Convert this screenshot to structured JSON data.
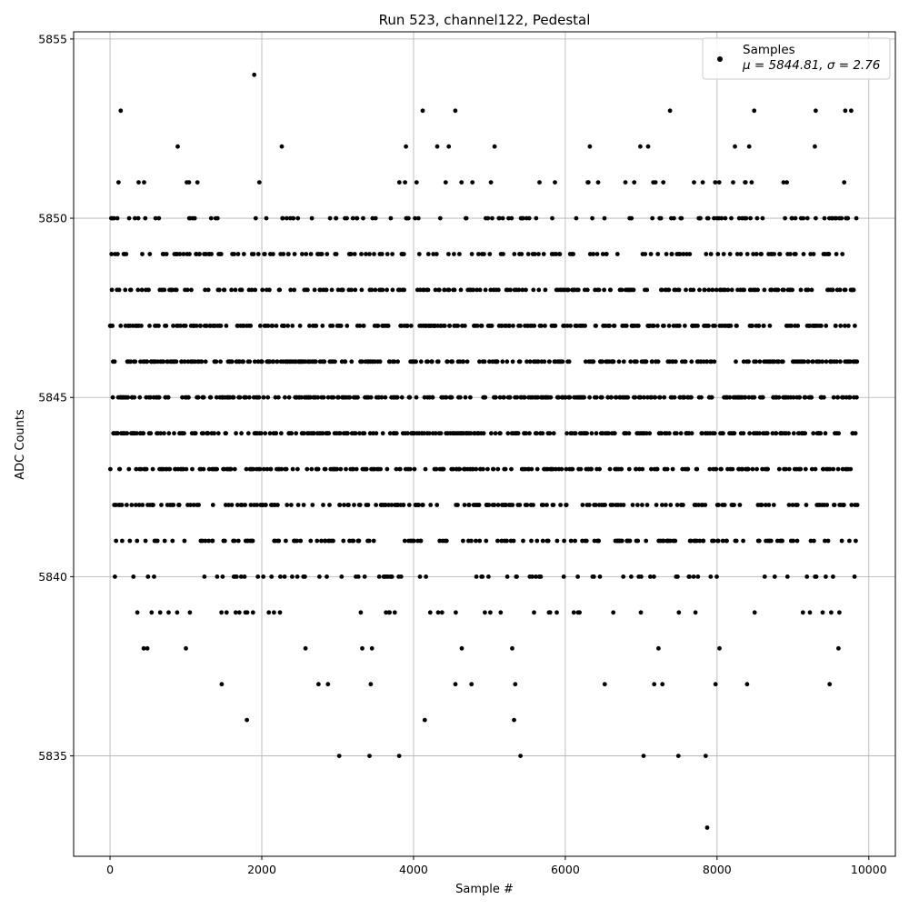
{
  "chart_data": {
    "type": "scatter",
    "title": "Run 523, channel122, Pedestal",
    "xlabel": "Sample #",
    "ylabel": "ADC Counts",
    "xlim": [
      -480,
      10350
    ],
    "ylim": [
      5832.2,
      5855.2
    ],
    "x_ticks": [
      0,
      2000,
      4000,
      6000,
      8000,
      10000
    ],
    "x_tick_labels": [
      "0",
      "2000",
      "4000",
      "6000",
      "8000",
      "10000"
    ],
    "y_ticks": [
      5835,
      5840,
      5845,
      5850,
      5855
    ],
    "y_tick_labels": [
      "5835",
      "5840",
      "5845",
      "5850",
      "5855"
    ],
    "grid": true,
    "legend": {
      "position": "top-right",
      "series_name": "Samples",
      "stats_label": "μ = 5844.81, σ = 2.76"
    },
    "marker_color": "#000000",
    "sample_count": 9850,
    "level_profile": {
      "note_levels": [
        5833,
        5835,
        5836,
        5837,
        5838,
        5839,
        5840,
        5841,
        5842,
        5843,
        5844,
        5845,
        5846,
        5847,
        5848,
        5849,
        5850,
        5851,
        5852,
        5853,
        5854
      ],
      "relative_density": [
        0.0001,
        0.0005,
        0.0012,
        0.003,
        0.006,
        0.016,
        0.035,
        0.06,
        0.09,
        0.11,
        0.125,
        0.13,
        0.125,
        0.11,
        0.09,
        0.06,
        0.035,
        0.016,
        0.006,
        0.0015,
        0.0002
      ]
    },
    "isolated_points": [
      {
        "x": 1900,
        "y": 5854
      },
      {
        "x": 140,
        "y": 5853
      },
      {
        "x": 4550,
        "y": 5853
      },
      {
        "x": 8490,
        "y": 5853
      },
      {
        "x": 9300,
        "y": 5853
      },
      {
        "x": 9690,
        "y": 5853
      },
      {
        "x": 3020,
        "y": 5835
      },
      {
        "x": 3420,
        "y": 5835
      },
      {
        "x": 3810,
        "y": 5835
      },
      {
        "x": 5410,
        "y": 5835
      },
      {
        "x": 7490,
        "y": 5835
      },
      {
        "x": 7850,
        "y": 5835
      },
      {
        "x": 7870,
        "y": 5833
      }
    ]
  }
}
